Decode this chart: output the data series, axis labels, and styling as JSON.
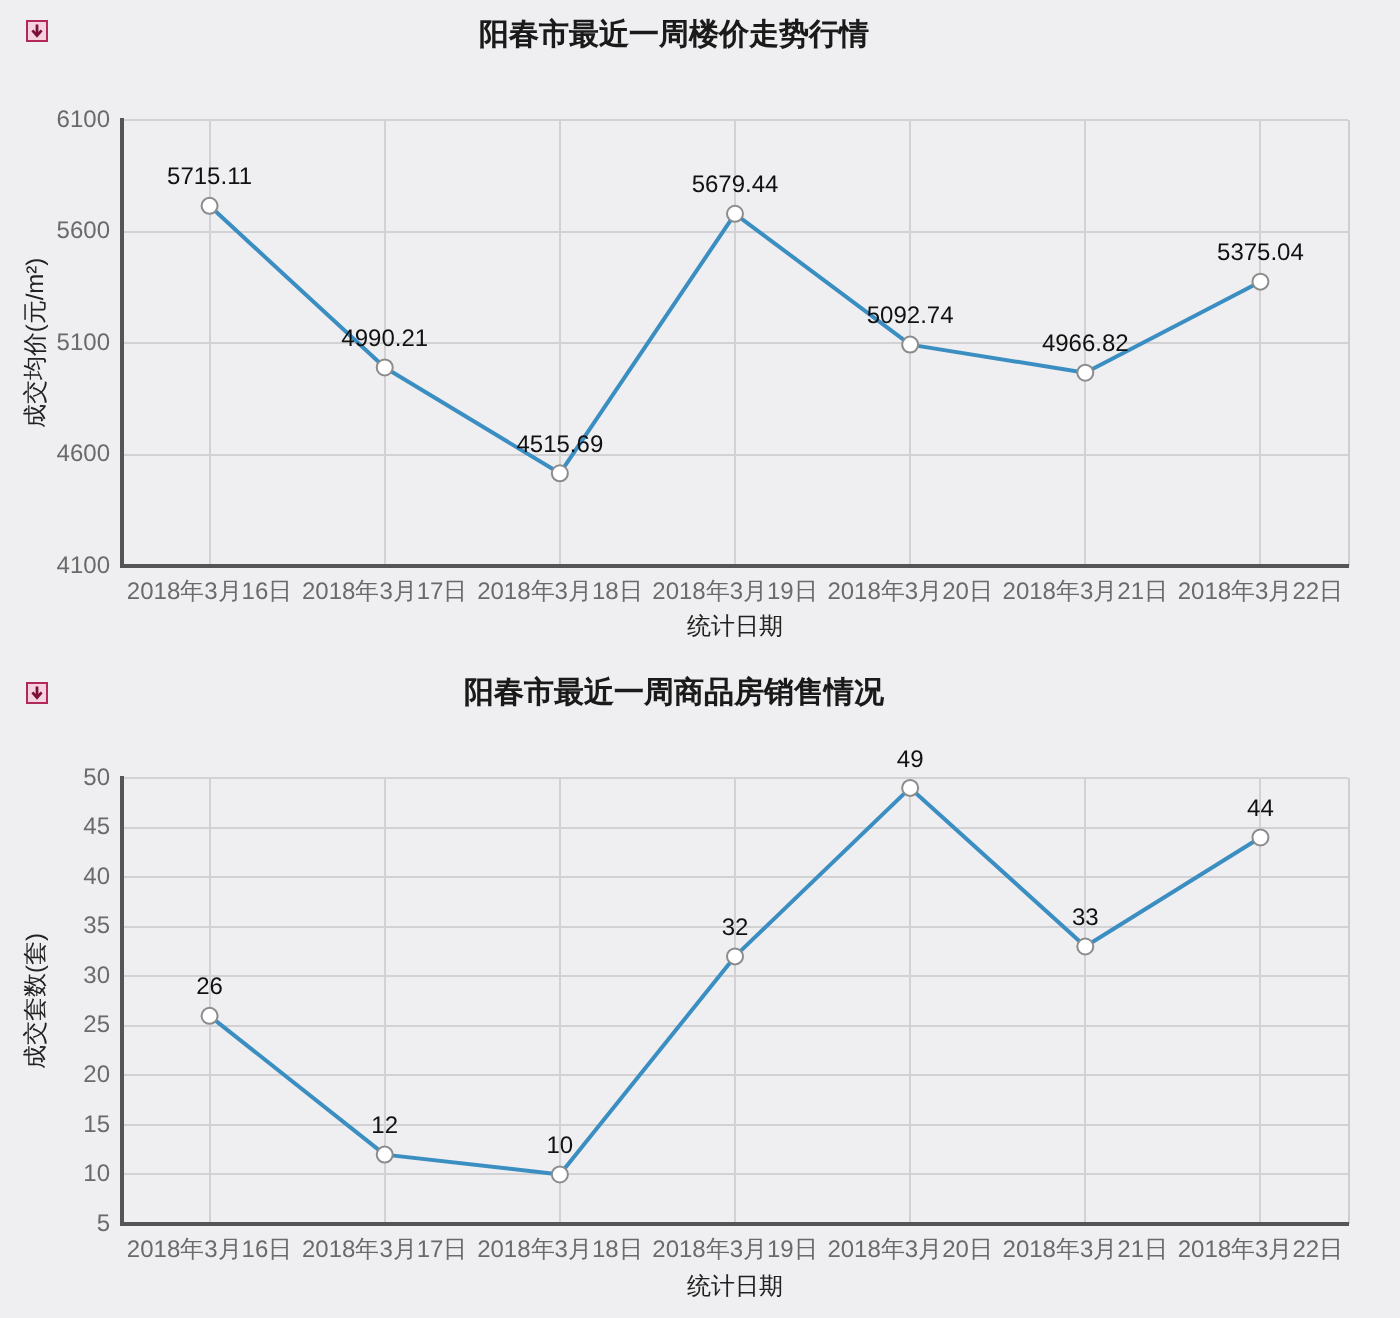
{
  "chart_data": [
    {
      "type": "line",
      "title": "阳春市最近一周楼价走势行情",
      "xlabel": "统计日期",
      "ylabel": "成交均价(元/m²)",
      "categories": [
        "2018年3月16日",
        "2018年3月17日",
        "2018年3月18日",
        "2018年3月19日",
        "2018年3月20日",
        "2018年3月21日",
        "2018年3月22日"
      ],
      "series": [
        {
          "color": "#3b8ec2",
          "values": [
            5715.11,
            4990.21,
            4515.69,
            5679.44,
            5092.74,
            4966.82,
            5375.04
          ]
        }
      ],
      "ylim": [
        4100,
        6100
      ],
      "yticks": [
        4100,
        4600,
        5100,
        5600,
        6100
      ],
      "grid": true,
      "marker": "circle",
      "line_style": "solid",
      "data_labels": true
    },
    {
      "type": "line",
      "title": "阳春市最近一周商品房销售情况",
      "xlabel": "统计日期",
      "ylabel": "成交套数(套)",
      "categories": [
        "2018年3月16日",
        "2018年3月17日",
        "2018年3月18日",
        "2018年3月19日",
        "2018年3月20日",
        "2018年3月21日",
        "2018年3月22日"
      ],
      "series": [
        {
          "color": "#3b8ec2",
          "values": [
            26,
            12,
            10,
            32,
            49,
            33,
            44
          ]
        }
      ],
      "ylim": [
        5,
        50
      ],
      "yticks": [
        5,
        10,
        15,
        20,
        25,
        30,
        35,
        40,
        45,
        50
      ],
      "grid": true,
      "marker": "circle",
      "line_style": "solid",
      "data_labels": true
    }
  ]
}
